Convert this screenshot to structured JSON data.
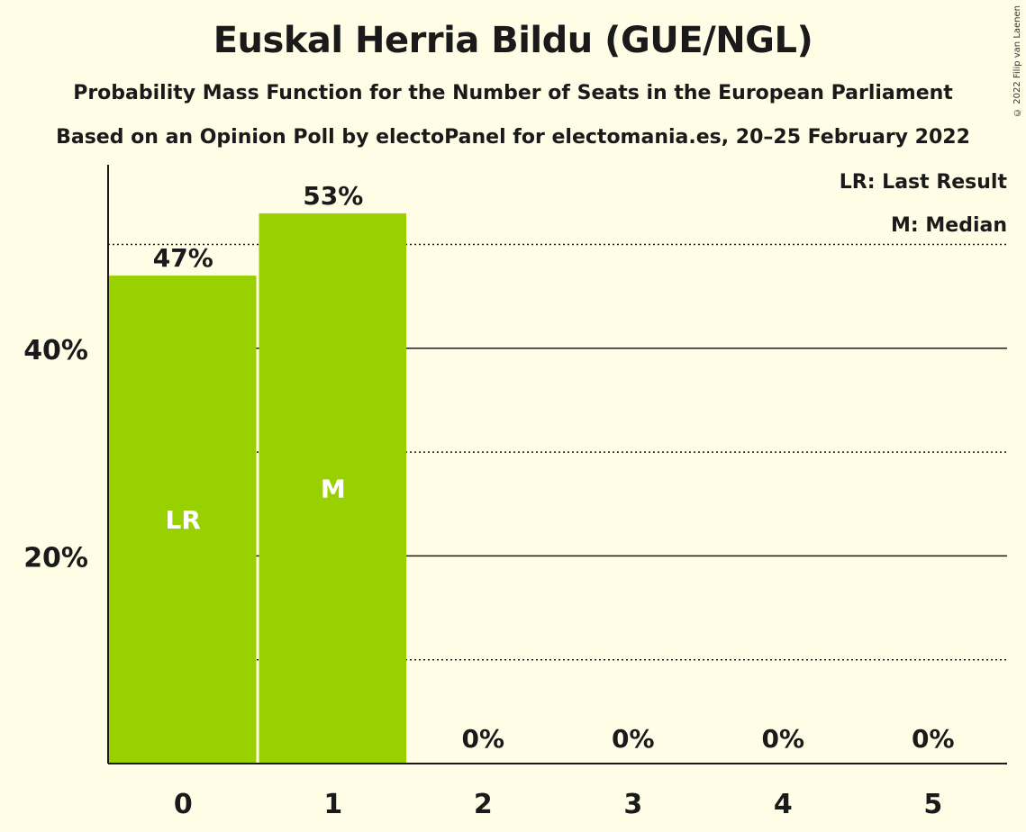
{
  "title": "Euskal Herria Bildu (GUE/NGL)",
  "subtitle": "Probability Mass Function for the Number of Seats in the European Parliament",
  "subtitle2": "Based on an Opinion Poll by electoPanel for electomania.es, 20–25 February 2022",
  "copyright": "© 2022 Filip van Laenen",
  "legend": {
    "last_result": "LR: Last Result",
    "median": "M: Median"
  },
  "colors": {
    "bar": "#99d100",
    "background": "#fffde6",
    "text": "#1a1a1a"
  },
  "chart_data": {
    "type": "bar",
    "categories": [
      "0",
      "1",
      "2",
      "3",
      "4",
      "5"
    ],
    "values": [
      47,
      53,
      0,
      0,
      0,
      0
    ],
    "value_labels": [
      "47%",
      "53%",
      "0%",
      "0%",
      "0%",
      "0%"
    ],
    "bar_markers": [
      "LR",
      "M",
      "",
      "",
      "",
      ""
    ],
    "y_ticks": [
      20,
      40
    ],
    "y_tick_labels": [
      "20%",
      "40%"
    ],
    "ylim": [
      0,
      57.5
    ],
    "solid_gridlines": [
      20,
      40
    ],
    "dotted_gridlines": [
      10,
      30,
      50
    ],
    "xlabel": "",
    "ylabel": ""
  }
}
